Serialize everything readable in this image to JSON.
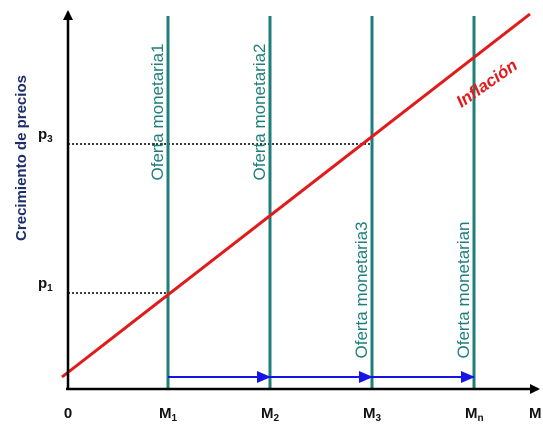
{
  "chart_data": {
    "type": "line",
    "title": "",
    "ylabel": "Crecimiento de precios",
    "xlabel": "M",
    "origin_label": "0",
    "x_ticks": [
      {
        "main": "M",
        "sub": "1"
      },
      {
        "main": "M",
        "sub": "2"
      },
      {
        "main": "M",
        "sub": "3"
      },
      {
        "main": "M",
        "sub": "n"
      }
    ],
    "y_ticks": [
      {
        "main": "p",
        "sub": "1"
      },
      {
        "main": "p",
        "sub": "3"
      }
    ],
    "inflation_line": {
      "name": "Inflación",
      "color": "#e11b1b"
    },
    "supply_lines": {
      "color": "#1e7f7a",
      "labels": [
        "Oferta monetaria1",
        "Oferta monetaria2",
        "Oferta monetaria3",
        "Oferta monetarian"
      ]
    },
    "arrows": {
      "color": "#1515e6",
      "count": 3
    },
    "guide_lines": {
      "style": "dotted",
      "color": "#000000"
    }
  }
}
